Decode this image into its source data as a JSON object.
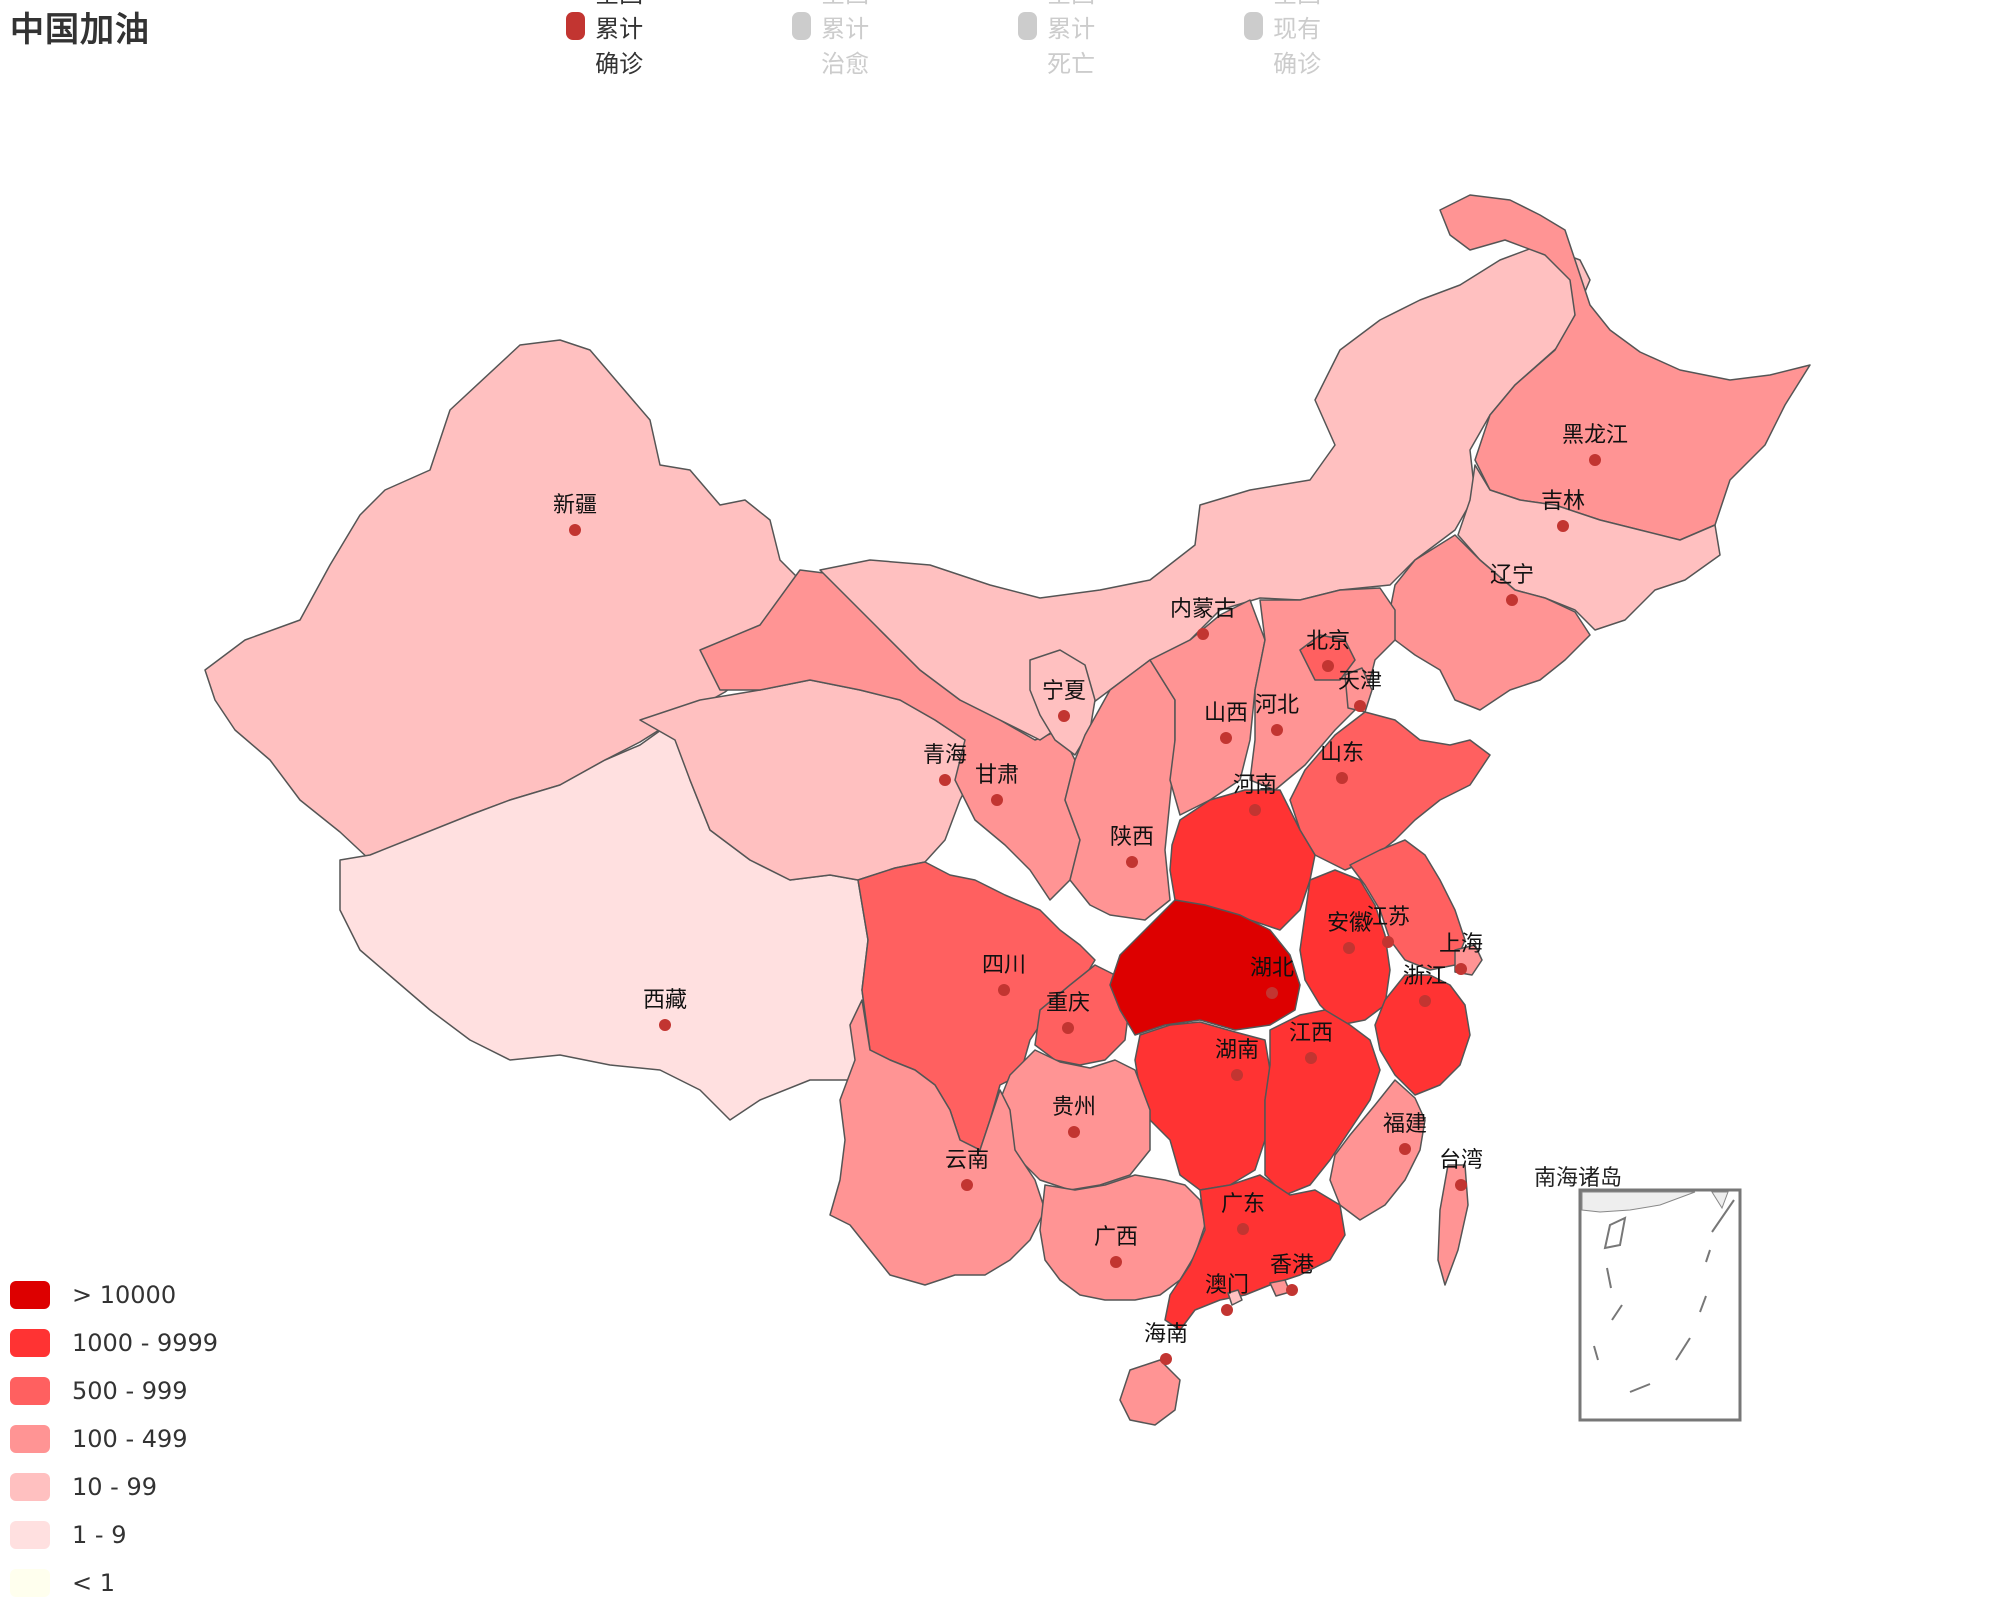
{
  "title": "中国加油",
  "legend": {
    "items": [
      {
        "label": "全国累计确诊",
        "color": "#c23531",
        "active": true
      },
      {
        "label": "全国累计治愈",
        "color": "#cccccc",
        "active": false
      },
      {
        "label": "全国累计死亡",
        "color": "#cccccc",
        "active": false
      },
      {
        "label": "全国现有确诊",
        "color": "#cccccc",
        "active": false
      }
    ]
  },
  "visual_map": {
    "pieces": [
      {
        "label": "> 10000",
        "color": "#dd0000"
      },
      {
        "label": "1000 - 9999",
        "color": "#ff3333"
      },
      {
        "label": "500 - 999",
        "color": "#ff6060"
      },
      {
        "label": "100 - 499",
        "color": "#ff9494"
      },
      {
        "label": "10 - 99",
        "color": "#ffc0c0"
      },
      {
        "label": "1 - 9",
        "color": "#ffe0e0"
      },
      {
        "label": "< 1",
        "color": "#ffffee"
      }
    ]
  },
  "marker_color": "#c23531",
  "border_color": "#555555",
  "inset_label": "南海诸岛",
  "provinces": [
    {
      "name": "新疆",
      "bin": 4
    },
    {
      "name": "西藏",
      "bin": 5
    },
    {
      "name": "青海",
      "bin": 4
    },
    {
      "name": "甘肃",
      "bin": 3
    },
    {
      "name": "内蒙古",
      "bin": 4
    },
    {
      "name": "黑龙江",
      "bin": 3
    },
    {
      "name": "吉林",
      "bin": 4
    },
    {
      "name": "辽宁",
      "bin": 3
    },
    {
      "name": "宁夏",
      "bin": 4
    },
    {
      "name": "陕西",
      "bin": 3
    },
    {
      "name": "山西",
      "bin": 3
    },
    {
      "name": "河北",
      "bin": 3
    },
    {
      "name": "北京",
      "bin": 2
    },
    {
      "name": "天津",
      "bin": 3
    },
    {
      "name": "山东",
      "bin": 2
    },
    {
      "name": "河南",
      "bin": 1
    },
    {
      "name": "四川",
      "bin": 2
    },
    {
      "name": "重庆",
      "bin": 2
    },
    {
      "name": "湖北",
      "bin": 0
    },
    {
      "name": "安徽",
      "bin": 1
    },
    {
      "name": "江苏",
      "bin": 2
    },
    {
      "name": "上海",
      "bin": 3
    },
    {
      "name": "浙江",
      "bin": 1
    },
    {
      "name": "湖南",
      "bin": 1
    },
    {
      "name": "江西",
      "bin": 1
    },
    {
      "name": "福建",
      "bin": 3
    },
    {
      "name": "贵州",
      "bin": 3
    },
    {
      "name": "云南",
      "bin": 3
    },
    {
      "name": "广西",
      "bin": 3
    },
    {
      "name": "广东",
      "bin": 1
    },
    {
      "name": "澳门",
      "bin": 4
    },
    {
      "name": "香港",
      "bin": 3
    },
    {
      "name": "海南",
      "bin": 3
    },
    {
      "name": "台湾",
      "bin": 3
    }
  ]
}
